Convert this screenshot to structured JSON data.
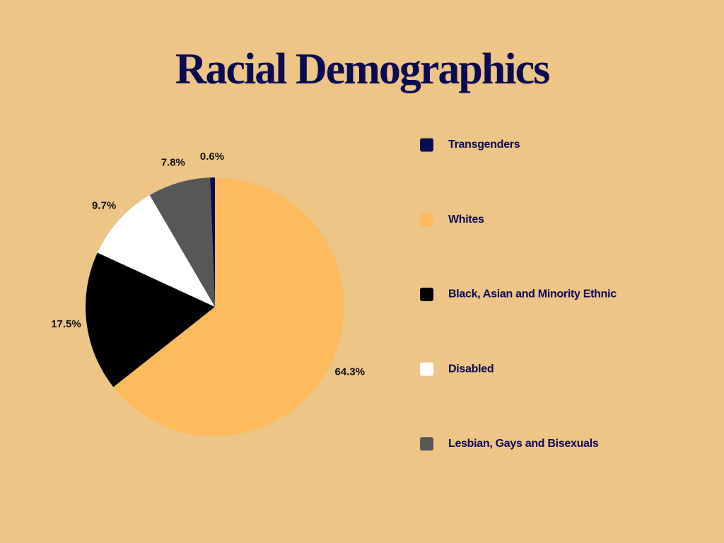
{
  "chart_data": {
    "type": "pie",
    "title": "Racial Demographics",
    "categories": [
      "Transgenders",
      "Whites",
      "Black, Asian and Minority Ethnic",
      "Disabled",
      "Lesbian, Gays and Bisexuals"
    ],
    "values": [
      0.6,
      64.3,
      17.5,
      9.7,
      7.8
    ],
    "value_labels": [
      "0.6%",
      "64.3%",
      "17.5%",
      "9.7%",
      "7.8%"
    ],
    "colors": [
      "#0b0b52",
      "#fdbb5d",
      "#000000",
      "#ffffff",
      "#575757"
    ],
    "legend": "right"
  }
}
